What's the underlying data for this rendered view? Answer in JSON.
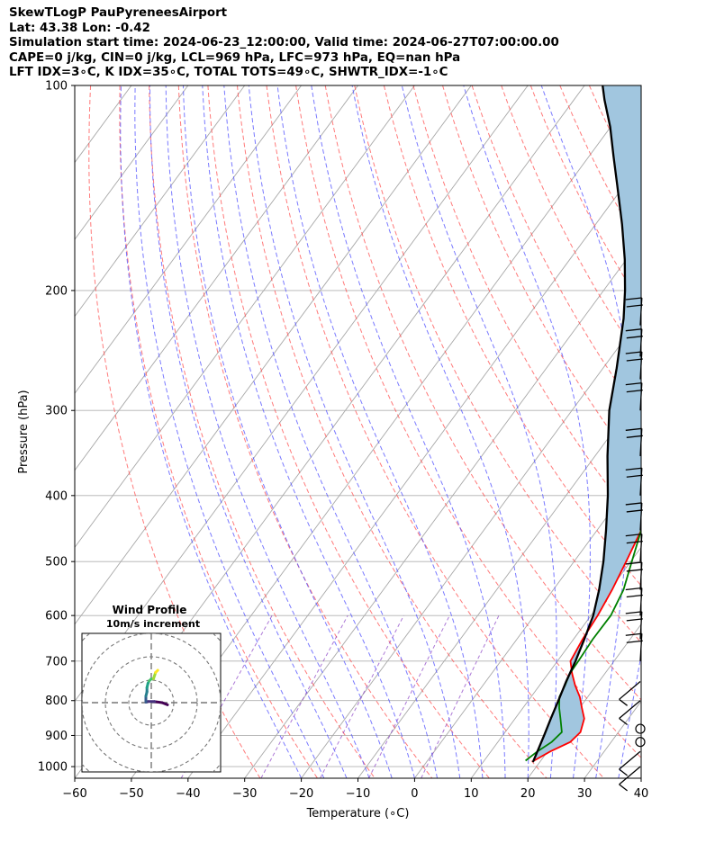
{
  "header": {
    "title": "SkewTLogP PauPyreneesAirport",
    "location": "Lat: 43.38   Lon: -0.42",
    "times": "Simulation start time: 2024-06-23_12:00:00, Valid time: 2024-06-27T07:00:00.00",
    "indices_1": "CAPE=0 j/kg, CIN=0 j/kg, LCL=969 hPa, LFC=973 hPa, EQ=nan hPa",
    "indices_2": "LFT IDX=3∘C, K IDX=35∘C, TOTAL TOTS=49∘C, SHWTR_IDX=-1∘C"
  },
  "chart_data": {
    "type": "line",
    "title": "SkewTLogP PauPyreneesAirport",
    "xlabel": "Temperature (∘C)",
    "ylabel": "Pressure (hPa)",
    "xlim": [
      -60,
      40
    ],
    "ylim": [
      1040,
      100
    ],
    "y_scale": "log",
    "x_ticks": [
      "−60",
      "−50",
      "−40",
      "−30",
      "−20",
      "−10",
      "0",
      "10",
      "20",
      "30",
      "40"
    ],
    "y_ticks": [
      "100",
      "200",
      "300",
      "400",
      "500",
      "600",
      "700",
      "800",
      "900",
      "1000"
    ],
    "grid": true,
    "colors": {
      "temperature": "#ff0000",
      "dewpoint": "#008000",
      "parcel": "#000000",
      "shade": "#a1c6df",
      "dry_adiabats": "#ff4d4d",
      "moist_adiabats": "#4d4dff",
      "mixing_ratio": "#8030c0"
    },
    "series": [
      {
        "key": "temperature",
        "values": [
          [
            18.8,
            980
          ],
          [
            20.5,
            950
          ],
          [
            22.8,
            920
          ],
          [
            23.3,
            890
          ],
          [
            22.2,
            850
          ],
          [
            20.4,
            820
          ],
          [
            18.6,
            790
          ],
          [
            16.3,
            760
          ],
          [
            14.2,
            730
          ],
          [
            12.3,
            700
          ],
          [
            11.6,
            650
          ],
          [
            11.2,
            600
          ],
          [
            10.4,
            550
          ],
          [
            9.2,
            500
          ],
          [
            7.8,
            450
          ],
          [
            5.6,
            400
          ],
          [
            2.5,
            350
          ],
          [
            -2.0,
            300
          ],
          [
            -6.5,
            260
          ],
          [
            -11.5,
            230
          ],
          [
            -15.5,
            210
          ],
          [
            -17.0,
            200
          ],
          [
            -15.0,
            190
          ],
          [
            -13.5,
            185
          ],
          [
            -10.0,
            175
          ],
          [
            -7.8,
            160
          ],
          [
            -6.1,
            150
          ],
          [
            -2.0,
            135
          ],
          [
            1.0,
            125
          ],
          [
            4.0,
            117
          ],
          [
            4.5,
            110
          ],
          [
            6.0,
            104
          ],
          [
            7.8,
            100
          ]
        ]
      },
      {
        "key": "dewpoint",
        "values": [
          [
            17.3,
            980
          ],
          [
            18.2,
            950
          ],
          [
            19.5,
            920
          ],
          [
            20.0,
            890
          ],
          [
            18.0,
            850
          ],
          [
            16.4,
            820
          ],
          [
            15.0,
            790
          ],
          [
            14.5,
            760
          ],
          [
            13.8,
            730
          ],
          [
            13.7,
            700
          ],
          [
            13.4,
            650
          ],
          [
            13.5,
            600
          ],
          [
            12.4,
            550
          ],
          [
            10.2,
            500
          ],
          [
            7.8,
            450
          ],
          [
            5.5,
            400
          ],
          [
            1.8,
            350
          ],
          [
            -3.0,
            300
          ],
          [
            -8.0,
            270
          ],
          [
            -13.0,
            240
          ],
          [
            -15.5,
            220
          ],
          [
            -16.5,
            210
          ],
          [
            -17.5,
            200
          ],
          [
            -16.5,
            195
          ],
          [
            -17.5,
            190
          ],
          [
            -17.0,
            185
          ],
          [
            -14.5,
            178
          ],
          [
            -12.5,
            170
          ],
          [
            -12.0,
            160
          ],
          [
            -11.0,
            152
          ],
          [
            -10.8,
            140
          ],
          [
            -10.5,
            135
          ],
          [
            -9.0,
            130
          ],
          [
            -4.5,
            120
          ],
          [
            -2.5,
            115
          ],
          [
            -0.5,
            110
          ],
          [
            0.0,
            106
          ],
          [
            0.5,
            100
          ]
        ]
      },
      {
        "key": "parcel",
        "values": [
          [
            18.8,
            985
          ],
          [
            18.2,
            950
          ],
          [
            17.3,
            900
          ],
          [
            16.3,
            850
          ],
          [
            15.3,
            800
          ],
          [
            14.2,
            750
          ],
          [
            13.2,
            700
          ],
          [
            11.9,
            650
          ],
          [
            10.4,
            600
          ],
          [
            8.1,
            550
          ],
          [
            5.2,
            500
          ],
          [
            1.6,
            450
          ],
          [
            -2.6,
            400
          ],
          [
            -7.8,
            350
          ],
          [
            -13.4,
            300
          ],
          [
            -17.6,
            260
          ],
          [
            -22.8,
            220
          ],
          [
            -26.2,
            200
          ],
          [
            -30.3,
            180
          ],
          [
            -35.3,
            160
          ],
          [
            -41.3,
            140
          ],
          [
            -45.7,
            127
          ],
          [
            -50.1,
            115
          ],
          [
            -54.6,
            105
          ],
          [
            -56.8,
            100
          ]
        ]
      }
    ],
    "wind_barbs": [
      {
        "p": 1000,
        "label": "barb"
      },
      {
        "p": 950,
        "label": "barb"
      },
      {
        "p": 920,
        "label": "calm"
      },
      {
        "p": 880,
        "label": "calm"
      },
      {
        "p": 800,
        "label": "barb"
      },
      {
        "p": 750,
        "label": "barb"
      },
      {
        "p": 700,
        "label": "barb"
      },
      {
        "p": 650,
        "label": "barb"
      },
      {
        "p": 600,
        "label": "barb"
      },
      {
        "p": 550,
        "label": "barb"
      },
      {
        "p": 500,
        "label": "barb"
      },
      {
        "p": 450,
        "label": "barb"
      },
      {
        "p": 400,
        "label": "barb"
      },
      {
        "p": 350,
        "label": "barb"
      },
      {
        "p": 300,
        "label": "barb"
      },
      {
        "p": 270,
        "label": "barb"
      },
      {
        "p": 250,
        "label": "barb"
      },
      {
        "p": 225,
        "label": "barb"
      }
    ]
  },
  "inset": {
    "title": "Wind Profile",
    "subtitle": "10m/s increment",
    "hodograph_uv": [
      [
        1.5,
        -0.2
      ],
      [
        1.0,
        0.0
      ],
      [
        0.3,
        0.1
      ],
      [
        -0.3,
        0.1
      ],
      [
        -0.5,
        0.05
      ],
      [
        -0.5,
        0.3
      ],
      [
        -0.5,
        0.6
      ],
      [
        -0.4,
        1.0
      ],
      [
        -0.4,
        1.4
      ],
      [
        -0.3,
        1.8
      ],
      [
        -0.2,
        2.0
      ],
      [
        0.0,
        2.2
      ],
      [
        0.2,
        2.2
      ],
      [
        0.3,
        2.5
      ],
      [
        0.4,
        2.8
      ],
      [
        0.6,
        3.0
      ]
    ]
  }
}
